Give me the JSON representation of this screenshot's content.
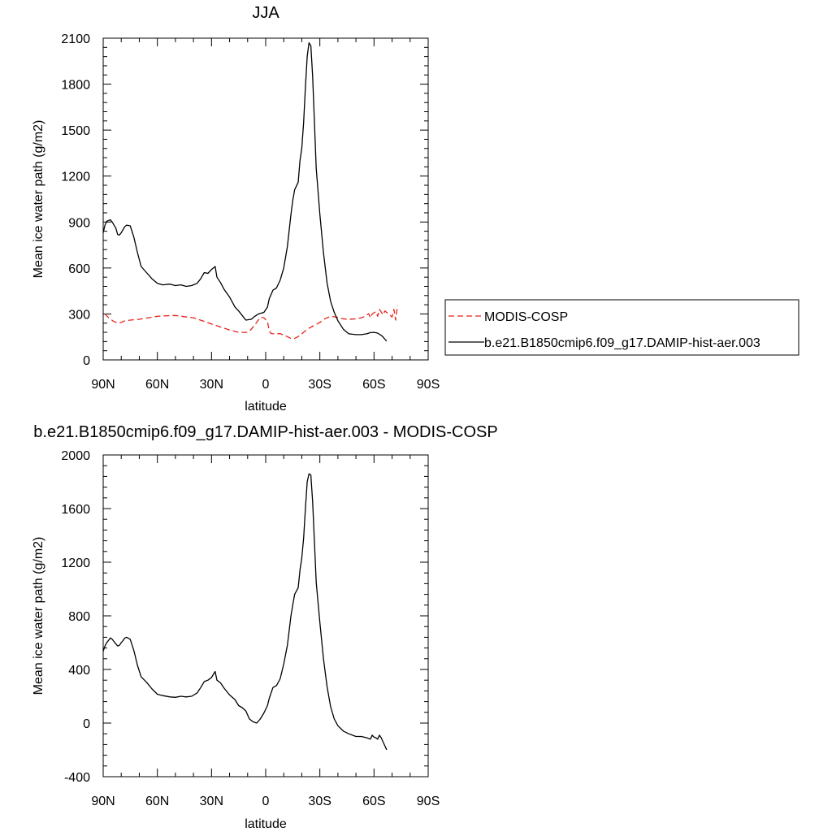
{
  "chart_data": [
    {
      "type": "line",
      "title": "JJA",
      "xlabel": "latitude",
      "ylabel": "Mean ice water path (g/m2)",
      "xlim": [
        90,
        -90
      ],
      "ylim": [
        0,
        2100
      ],
      "xticks": [
        {
          "v": 90,
          "label": "90N"
        },
        {
          "v": 60,
          "label": "60N"
        },
        {
          "v": 30,
          "label": "30N"
        },
        {
          "v": 0,
          "label": "0"
        },
        {
          "v": -30,
          "label": "30S"
        },
        {
          "v": -60,
          "label": "60S"
        },
        {
          "v": -90,
          "label": "90S"
        }
      ],
      "yticks": [
        0,
        300,
        600,
        900,
        1200,
        1500,
        1800,
        2100
      ],
      "legend_position": "right",
      "series": [
        {
          "name": "MODIS-COSP",
          "color": "#e8221c",
          "dash": "dashed",
          "points": [
            [
              89,
              300
            ],
            [
              87,
              275
            ],
            [
              84,
              250
            ],
            [
              81,
              240
            ],
            [
              78,
              255
            ],
            [
              75,
              260
            ],
            [
              70,
              265
            ],
            [
              65,
              275
            ],
            [
              60,
              285
            ],
            [
              55,
              288
            ],
            [
              50,
              290
            ],
            [
              45,
              282
            ],
            [
              40,
              275
            ],
            [
              35,
              255
            ],
            [
              30,
              235
            ],
            [
              25,
              215
            ],
            [
              20,
              195
            ],
            [
              15,
              180
            ],
            [
              10,
              180
            ],
            [
              8,
              200
            ],
            [
              5,
              245
            ],
            [
              3,
              278
            ],
            [
              1,
              275
            ],
            [
              -1,
              250
            ],
            [
              -2,
              190
            ],
            [
              -3,
              172
            ],
            [
              -5,
              170
            ],
            [
              -8,
              172
            ],
            [
              -10,
              160
            ],
            [
              -12,
              152
            ],
            [
              -14,
              140
            ],
            [
              -16,
              140
            ],
            [
              -18,
              152
            ],
            [
              -20,
              170
            ],
            [
              -23,
              200
            ],
            [
              -26,
              220
            ],
            [
              -30,
              245
            ],
            [
              -33,
              270
            ],
            [
              -36,
              285
            ],
            [
              -40,
              278
            ],
            [
              -43,
              268
            ],
            [
              -46,
              265
            ],
            [
              -50,
              268
            ],
            [
              -53,
              275
            ],
            [
              -55,
              285
            ],
            [
              -57,
              302
            ],
            [
              -58,
              275
            ],
            [
              -59,
              300
            ],
            [
              -61,
              315
            ],
            [
              -62,
              285
            ],
            [
              -63,
              330
            ],
            [
              -65,
              295
            ],
            [
              -66,
              320
            ],
            [
              -68,
              300
            ],
            [
              -70,
              280
            ],
            [
              -71,
              330
            ],
            [
              -72,
              260
            ],
            [
              -73,
              355
            ]
          ]
        },
        {
          "name": "b.e21.B1850cmip6.f09_g17.DAMIP-hist-aer.003",
          "color": "#000000",
          "dash": "solid",
          "points": [
            [
              90,
              830
            ],
            [
              89,
              880
            ],
            [
              88,
              905
            ],
            [
              86,
              915
            ],
            [
              85,
              900
            ],
            [
              83,
              860
            ],
            [
              82,
              818
            ],
            [
              81,
              815
            ],
            [
              80,
              830
            ],
            [
              79,
              850
            ],
            [
              78,
              870
            ],
            [
              77,
              880
            ],
            [
              75,
              875
            ],
            [
              73,
              800
            ],
            [
              71,
              700
            ],
            [
              69,
              610
            ],
            [
              66,
              570
            ],
            [
              63,
              530
            ],
            [
              60,
              500
            ],
            [
              57,
              490
            ],
            [
              53,
              495
            ],
            [
              50,
              485
            ],
            [
              47,
              490
            ],
            [
              44,
              480
            ],
            [
              41,
              485
            ],
            [
              38,
              500
            ],
            [
              36,
              530
            ],
            [
              34,
              570
            ],
            [
              32,
              565
            ],
            [
              30,
              590
            ],
            [
              28,
              610
            ],
            [
              27,
              540
            ],
            [
              25,
              505
            ],
            [
              23,
              460
            ],
            [
              20,
              410
            ],
            [
              17,
              345
            ],
            [
              15,
              320
            ],
            [
              13,
              290
            ],
            [
              11,
              260
            ],
            [
              8,
              265
            ],
            [
              6,
              285
            ],
            [
              4,
              300
            ],
            [
              1,
              310
            ],
            [
              -1,
              345
            ],
            [
              -2,
              400
            ],
            [
              -4,
              455
            ],
            [
              -6,
              470
            ],
            [
              -8,
              520
            ],
            [
              -10,
              600
            ],
            [
              -12,
              740
            ],
            [
              -14,
              950
            ],
            [
              -15,
              1040
            ],
            [
              -16,
              1110
            ],
            [
              -18,
              1160
            ],
            [
              -19,
              1300
            ],
            [
              -20,
              1380
            ],
            [
              -21,
              1550
            ],
            [
              -22,
              1780
            ],
            [
              -23,
              1980
            ],
            [
              -24,
              2070
            ],
            [
              -25,
              2050
            ],
            [
              -26,
              1850
            ],
            [
              -27,
              1550
            ],
            [
              -28,
              1250
            ],
            [
              -30,
              950
            ],
            [
              -32,
              700
            ],
            [
              -34,
              500
            ],
            [
              -36,
              380
            ],
            [
              -38,
              310
            ],
            [
              -40,
              255
            ],
            [
              -43,
              200
            ],
            [
              -46,
              170
            ],
            [
              -50,
              165
            ],
            [
              -53,
              165
            ],
            [
              -56,
              170
            ],
            [
              -58,
              178
            ],
            [
              -60,
              180
            ],
            [
              -62,
              175
            ],
            [
              -64,
              160
            ],
            [
              -65,
              150
            ],
            [
              -66,
              135
            ],
            [
              -67,
              122
            ]
          ]
        }
      ]
    },
    {
      "type": "line",
      "title": "b.e21.B1850cmip6.f09_g17.DAMIP-hist-aer.003 - MODIS-COSP",
      "xlabel": "latitude",
      "ylabel": "Mean ice water path (g/m2)",
      "xlim": [
        90,
        -90
      ],
      "ylim": [
        -400,
        2000
      ],
      "xticks": [
        {
          "v": 90,
          "label": "90N"
        },
        {
          "v": 60,
          "label": "60N"
        },
        {
          "v": 30,
          "label": "30N"
        },
        {
          "v": 0,
          "label": "0"
        },
        {
          "v": -30,
          "label": "30S"
        },
        {
          "v": -60,
          "label": "60S"
        },
        {
          "v": -90,
          "label": "90S"
        }
      ],
      "yticks": [
        -400,
        0,
        400,
        800,
        1200,
        1600,
        2000
      ],
      "series": [
        {
          "color": "#000000",
          "dash": "solid",
          "points": [
            [
              90,
              535
            ],
            [
              89,
              575
            ],
            [
              88,
              600
            ],
            [
              86,
              635
            ],
            [
              85,
              625
            ],
            [
              83,
              590
            ],
            [
              82,
              575
            ],
            [
              81,
              580
            ],
            [
              80,
              600
            ],
            [
              79,
              615
            ],
            [
              78,
              635
            ],
            [
              77,
              640
            ],
            [
              75,
              625
            ],
            [
              73,
              540
            ],
            [
              71,
              430
            ],
            [
              69,
              345
            ],
            [
              66,
              305
            ],
            [
              63,
              255
            ],
            [
              60,
              215
            ],
            [
              57,
              205
            ],
            [
              53,
              195
            ],
            [
              50,
              192
            ],
            [
              47,
              200
            ],
            [
              44,
              195
            ],
            [
              41,
              200
            ],
            [
              38,
              225
            ],
            [
              36,
              265
            ],
            [
              34,
              310
            ],
            [
              32,
              320
            ],
            [
              30,
              340
            ],
            [
              28,
              385
            ],
            [
              27,
              320
            ],
            [
              25,
              300
            ],
            [
              23,
              260
            ],
            [
              20,
              210
            ],
            [
              17,
              175
            ],
            [
              15,
              130
            ],
            [
              13,
              115
            ],
            [
              11,
              90
            ],
            [
              9,
              30
            ],
            [
              7,
              10
            ],
            [
              5,
              0
            ],
            [
              3,
              30
            ],
            [
              1,
              75
            ],
            [
              -1,
              130
            ],
            [
              -2,
              185
            ],
            [
              -4,
              265
            ],
            [
              -6,
              280
            ],
            [
              -8,
              330
            ],
            [
              -10,
              440
            ],
            [
              -12,
              580
            ],
            [
              -14,
              800
            ],
            [
              -15,
              880
            ],
            [
              -16,
              960
            ],
            [
              -18,
              1010
            ],
            [
              -19,
              1140
            ],
            [
              -20,
              1230
            ],
            [
              -21,
              1380
            ],
            [
              -22,
              1600
            ],
            [
              -23,
              1800
            ],
            [
              -24,
              1860
            ],
            [
              -25,
              1850
            ],
            [
              -26,
              1650
            ],
            [
              -27,
              1350
            ],
            [
              -28,
              1050
            ],
            [
              -30,
              750
            ],
            [
              -32,
              480
            ],
            [
              -34,
              270
            ],
            [
              -36,
              120
            ],
            [
              -38,
              30
            ],
            [
              -40,
              -20
            ],
            [
              -43,
              -60
            ],
            [
              -46,
              -80
            ],
            [
              -50,
              -100
            ],
            [
              -53,
              -100
            ],
            [
              -56,
              -110
            ],
            [
              -58,
              -120
            ],
            [
              -59,
              -90
            ],
            [
              -60,
              -105
            ],
            [
              -61,
              -110
            ],
            [
              -62,
              -120
            ],
            [
              -63,
              -90
            ],
            [
              -64,
              -110
            ],
            [
              -65,
              -140
            ],
            [
              -66,
              -170
            ],
            [
              -67,
              -200
            ]
          ]
        }
      ]
    }
  ]
}
